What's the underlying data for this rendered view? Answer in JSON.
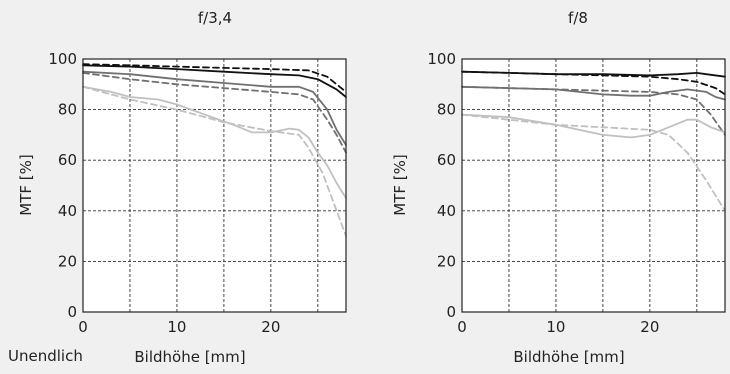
{
  "footer_note": "Unendlich",
  "chart_data": [
    {
      "type": "line",
      "title": "f/3,4",
      "xlabel": "Bildhöhe [mm]",
      "ylabel": "MTF [%]",
      "xlim": [
        0,
        28
      ],
      "ylim": [
        0,
        100
      ],
      "xticks": [
        0,
        10,
        20
      ],
      "yticks": [
        0,
        20,
        40,
        60,
        80,
        100
      ],
      "grid": "dashed",
      "series": [
        {
          "color": "#111111",
          "style": "dashed",
          "points": [
            [
              0,
              98
            ],
            [
              5,
              97.5
            ],
            [
              10,
              97
            ],
            [
              15,
              96.5
            ],
            [
              20,
              96
            ],
            [
              24,
              95.5
            ],
            [
              26,
              93
            ],
            [
              28,
              87
            ]
          ]
        },
        {
          "color": "#111111",
          "style": "solid",
          "points": [
            [
              0,
              97.5
            ],
            [
              5,
              97
            ],
            [
              10,
              96
            ],
            [
              15,
              95
            ],
            [
              20,
              94
            ],
            [
              23,
              93.5
            ],
            [
              25,
              92
            ],
            [
              27,
              88
            ],
            [
              28,
              85
            ]
          ]
        },
        {
          "color": "#707070",
          "style": "solid",
          "points": [
            [
              0,
              95
            ],
            [
              5,
              94
            ],
            [
              10,
              92
            ],
            [
              15,
              90.5
            ],
            [
              20,
              89
            ],
            [
              23,
              89
            ],
            [
              24.5,
              87
            ],
            [
              26,
              80
            ],
            [
              27,
              72
            ],
            [
              28,
              66
            ]
          ]
        },
        {
          "color": "#707070",
          "style": "dashed",
          "points": [
            [
              0,
              94.5
            ],
            [
              5,
              92
            ],
            [
              10,
              90
            ],
            [
              15,
              88.5
            ],
            [
              20,
              87
            ],
            [
              23,
              86
            ],
            [
              24.5,
              84
            ],
            [
              26,
              76
            ],
            [
              27,
              70
            ],
            [
              28,
              63
            ]
          ]
        },
        {
          "color": "#c0c0c0",
          "style": "solid",
          "points": [
            [
              0,
              89
            ],
            [
              3,
              87
            ],
            [
              5,
              85
            ],
            [
              8,
              84
            ],
            [
              10,
              82
            ],
            [
              13,
              78
            ],
            [
              16,
              74
            ],
            [
              18,
              71
            ],
            [
              20,
              71
            ],
            [
              22,
              72.5
            ],
            [
              23,
              72
            ],
            [
              24,
              69
            ],
            [
              25,
              63
            ],
            [
              26,
              58
            ],
            [
              27,
              51
            ],
            [
              28,
              45
            ]
          ]
        },
        {
          "color": "#c0c0c0",
          "style": "dashed",
          "points": [
            [
              0,
              89
            ],
            [
              5,
              84
            ],
            [
              10,
              80
            ],
            [
              15,
              75
            ],
            [
              20,
              71.5
            ],
            [
              23,
              70
            ],
            [
              24,
              65
            ],
            [
              25.5,
              55
            ],
            [
              27,
              40
            ],
            [
              28,
              30
            ]
          ]
        }
      ]
    },
    {
      "type": "line",
      "title": "f/8",
      "xlabel": "Bildhöhe [mm]",
      "ylabel": "MTF [%]",
      "xlim": [
        0,
        28
      ],
      "ylim": [
        0,
        100
      ],
      "xticks": [
        0,
        10,
        20
      ],
      "yticks": [
        0,
        20,
        40,
        60,
        80,
        100
      ],
      "grid": "dashed",
      "series": [
        {
          "color": "#111111",
          "style": "dashed",
          "points": [
            [
              0,
              95
            ],
            [
              5,
              94.5
            ],
            [
              10,
              94
            ],
            [
              15,
              93.5
            ],
            [
              20,
              93
            ],
            [
              23,
              92
            ],
            [
              25,
              91
            ],
            [
              27,
              88.5
            ],
            [
              28,
              86
            ]
          ]
        },
        {
          "color": "#111111",
          "style": "solid",
          "points": [
            [
              0,
              95
            ],
            [
              5,
              94.5
            ],
            [
              10,
              94
            ],
            [
              15,
              94
            ],
            [
              20,
              93.5
            ],
            [
              23,
              94
            ],
            [
              25,
              94.5
            ],
            [
              26,
              94
            ],
            [
              28,
              93
            ]
          ]
        },
        {
          "color": "#707070",
          "style": "dashed",
          "points": [
            [
              0,
              89
            ],
            [
              5,
              88.5
            ],
            [
              10,
              88
            ],
            [
              15,
              87.5
            ],
            [
              20,
              87
            ],
            [
              23,
              86
            ],
            [
              25,
              84
            ],
            [
              26.5,
              78
            ],
            [
              28,
              70
            ]
          ]
        },
        {
          "color": "#707070",
          "style": "solid",
          "points": [
            [
              0,
              89
            ],
            [
              5,
              88.5
            ],
            [
              10,
              88
            ],
            [
              15,
              86
            ],
            [
              18,
              85.5
            ],
            [
              20,
              85.5
            ],
            [
              22,
              87
            ],
            [
              24,
              88
            ],
            [
              26,
              87
            ],
            [
              27,
              85
            ],
            [
              28,
              84
            ]
          ]
        },
        {
          "color": "#c0c0c0",
          "style": "dashed",
          "points": [
            [
              0,
              78
            ],
            [
              5,
              76
            ],
            [
              10,
              74
            ],
            [
              15,
              73
            ],
            [
              20,
              72
            ],
            [
              22,
              70
            ],
            [
              24,
              63
            ],
            [
              26,
              52
            ],
            [
              27.5,
              43
            ],
            [
              28,
              40
            ]
          ]
        },
        {
          "color": "#c0c0c0",
          "style": "solid",
          "points": [
            [
              0,
              78
            ],
            [
              5,
              77
            ],
            [
              10,
              74
            ],
            [
              15,
              70
            ],
            [
              18,
              69
            ],
            [
              20,
              70
            ],
            [
              22,
              73
            ],
            [
              24,
              76
            ],
            [
              25,
              76
            ],
            [
              26.5,
              73
            ],
            [
              28,
              71
            ]
          ]
        }
      ]
    }
  ]
}
